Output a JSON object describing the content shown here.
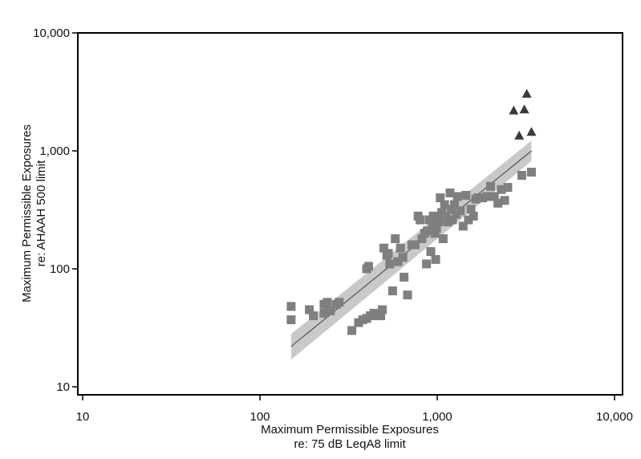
{
  "chart_data": {
    "type": "scatter",
    "xscale": "log",
    "yscale": "log",
    "xlim": [
      10,
      10000
    ],
    "ylim": [
      10,
      10000
    ],
    "xticks": [
      10,
      100,
      1000,
      10000
    ],
    "yticks": [
      10,
      100,
      1000,
      10000
    ],
    "xtick_labels": [
      "10",
      "100",
      "1,000",
      "10,000"
    ],
    "ytick_labels": [
      "10",
      "100",
      "1,000",
      "10,000"
    ],
    "xlabel_lines": [
      "Maximum Permissible Exposures",
      "re: 75 dB LeqA8 limit"
    ],
    "ylabel_lines": [
      "Maximum Permissible Exposures",
      "re: AHAAH 500 limit"
    ],
    "grid": false,
    "colors": {
      "squares": "#7f7f7f",
      "triangles": "#3a3a3a",
      "fit_line": "#555555",
      "band": "#c9c9c9"
    },
    "series": [
      {
        "marker": "square",
        "x": [
          150,
          150,
          190,
          200,
          230,
          230,
          240,
          250,
          270,
          280,
          330,
          360,
          380,
          400,
          400,
          410,
          420,
          440,
          460,
          470,
          480,
          490,
          500,
          520,
          530,
          540,
          560,
          580,
          600,
          620,
          640,
          650,
          680,
          720,
          750,
          780,
          800,
          820,
          850,
          870,
          880,
          900,
          920,
          940,
          950,
          970,
          980,
          990,
          1000,
          1020,
          1040,
          1060,
          1080,
          1100,
          1120,
          1150,
          1180,
          1200,
          1220,
          1250,
          1280,
          1300,
          1350,
          1400,
          1450,
          1500,
          1550,
          1600,
          1650,
          1700,
          1800,
          1900,
          2000,
          2100,
          2200,
          2300,
          2400,
          2500,
          3000,
          3400
        ],
        "y": [
          48,
          37,
          45,
          40,
          50,
          42,
          52,
          44,
          50,
          52,
          30,
          35,
          37,
          100,
          38,
          105,
          40,
          42,
          40,
          40,
          40,
          45,
          150,
          130,
          135,
          110,
          65,
          180,
          115,
          150,
          125,
          85,
          60,
          160,
          160,
          280,
          260,
          180,
          200,
          110,
          210,
          260,
          140,
          240,
          280,
          200,
          120,
          220,
          260,
          250,
          400,
          300,
          180,
          350,
          280,
          250,
          440,
          320,
          260,
          350,
          290,
          410,
          310,
          230,
          420,
          260,
          320,
          280,
          390,
          400,
          400,
          410,
          500,
          410,
          360,
          470,
          380,
          490,
          620,
          660
        ]
      },
      {
        "marker": "triangle",
        "x": [
          2700,
          2900,
          3100,
          3200,
          3400
        ],
        "y": [
          2200,
          1350,
          2250,
          3050,
          1450
        ]
      }
    ],
    "fit": {
      "x": [
        150,
        3400
      ],
      "y": [
        22,
        1000
      ],
      "ci_low": [
        17,
        820
      ],
      "ci_high": [
        28,
        1220
      ]
    }
  }
}
